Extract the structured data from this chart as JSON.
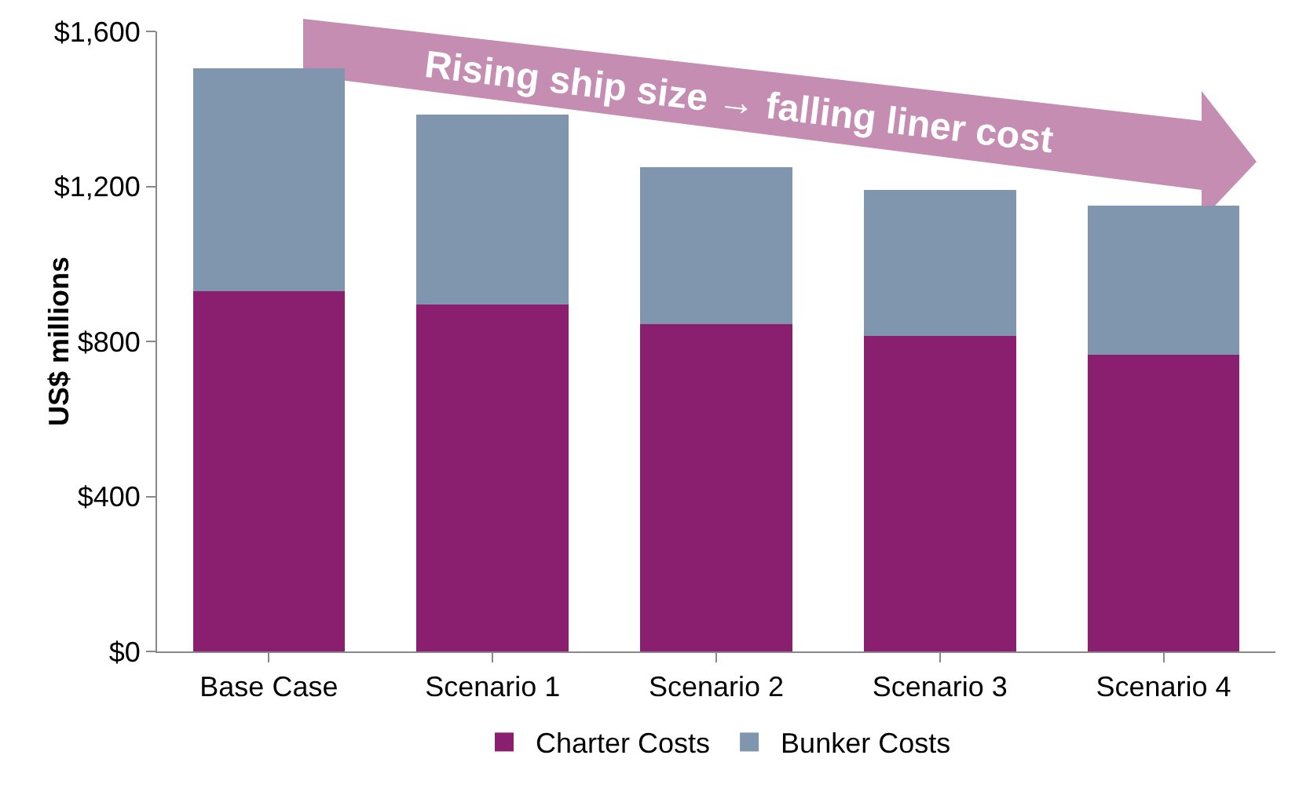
{
  "chart_data": {
    "type": "bar",
    "stacked": true,
    "categories": [
      "Base Case",
      "Scenario 1",
      "Scenario 2",
      "Scenario 3",
      "Scenario 4"
    ],
    "series": [
      {
        "name": "Charter Costs",
        "color": "#8b1f6f",
        "values": [
          930,
          895,
          845,
          815,
          765
        ]
      },
      {
        "name": "Bunker Costs",
        "color": "#7f96ae",
        "values": [
          575,
          490,
          405,
          375,
          385
        ]
      }
    ],
    "ylabel": "US$ millions",
    "ylim": [
      0,
      1600
    ],
    "yticks": [
      {
        "value": 0,
        "label": "$0"
      },
      {
        "value": 400,
        "label": "$400"
      },
      {
        "value": 800,
        "label": "$800"
      },
      {
        "value": 1200,
        "label": "$1,200"
      },
      {
        "value": 1600,
        "label": "$1,600"
      }
    ],
    "grid": false,
    "legend": "bottom",
    "annotations": [
      "Rising ship size → falling liner cost"
    ]
  }
}
